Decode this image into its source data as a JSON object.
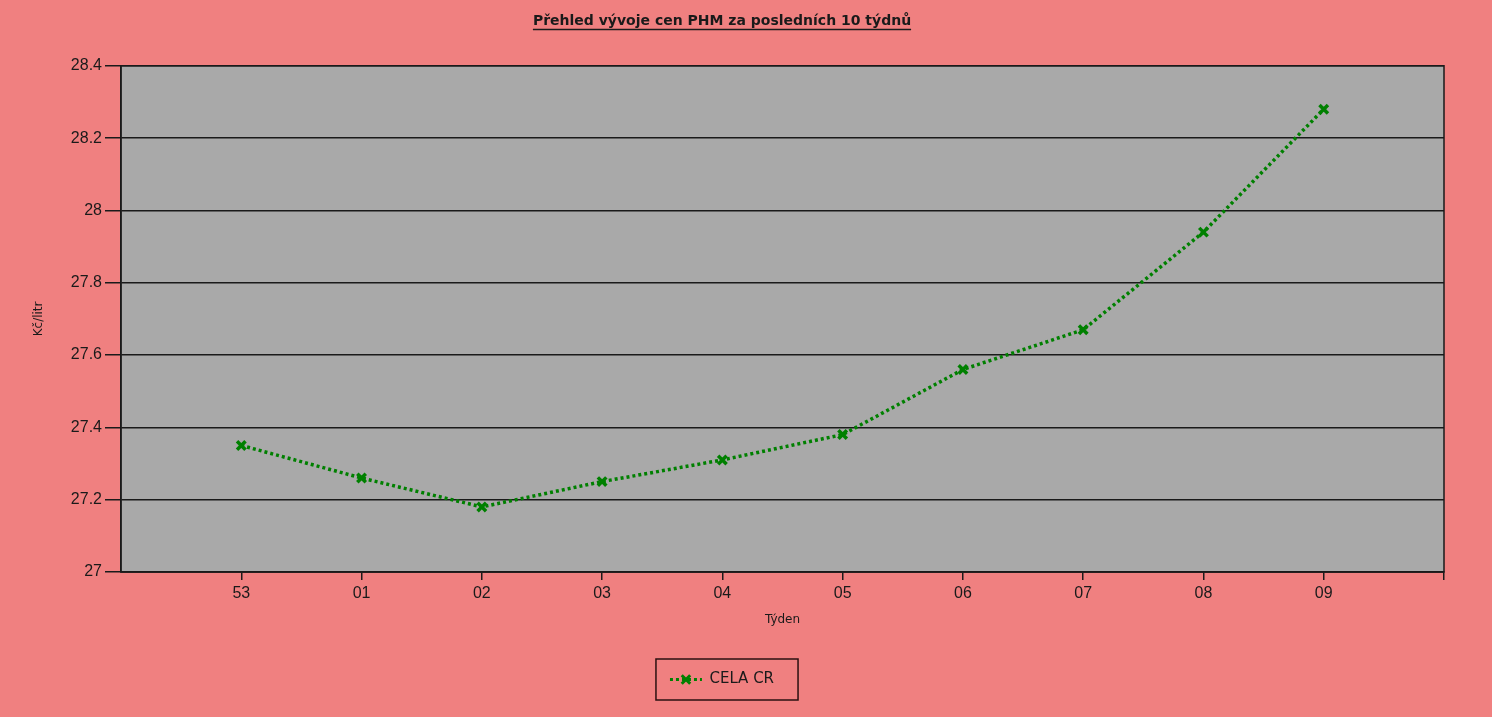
{
  "chart_data": {
    "type": "line",
    "title": "Přehled vývoje cen PHM za posledních 10 týdnů",
    "xlabel": "Týden",
    "ylabel": "Kč/litr",
    "categories": [
      "53",
      "01",
      "02",
      "03",
      "04",
      "05",
      "06",
      "07",
      "08",
      "09"
    ],
    "series": [
      {
        "name": "CELA CR",
        "color": "#008000",
        "values": [
          27.35,
          27.26,
          27.18,
          27.25,
          27.31,
          27.38,
          27.56,
          27.67,
          27.94,
          28.28
        ]
      }
    ],
    "ylim": [
      27,
      28.4
    ],
    "yticks": [
      27,
      27.2,
      27.4,
      27.6,
      27.8,
      28,
      28.2,
      28.4
    ],
    "grid": "y",
    "legend": "bottom",
    "marker": "cross",
    "line_style": "dotted"
  }
}
